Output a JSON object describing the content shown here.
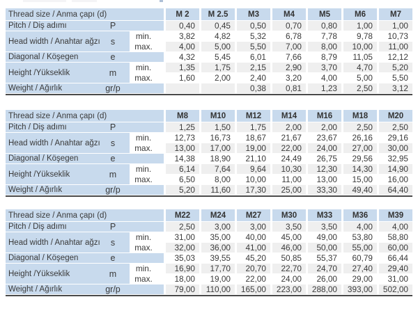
{
  "labels": {
    "thread_size": "Thread size / Anma çapı (d)",
    "pitch": "Pitch / Diş adımı",
    "head_width": "Head width / Anahtar ağzı",
    "diagonal": "Diagonal / Köşegen",
    "height": "Height /Yükseklik",
    "weight": "Weight / Ağırlık",
    "min": "min.",
    "max": "max."
  },
  "symbols": {
    "pitch": "P",
    "head_width": "s",
    "diagonal": "e",
    "height": "m",
    "weight": "gr/p"
  },
  "colors": {
    "header_blue": "#c8daed",
    "row_gray": "#efefef",
    "row_white": "#ffffff",
    "divider_dark": "#4a4a4a",
    "text": "#3a3a3a"
  },
  "tables": [
    {
      "columns": [
        "M 2",
        "M 2.5",
        "M3",
        "M4",
        "M5",
        "M6",
        "M7"
      ],
      "pitch": [
        "0,40",
        "0,45",
        "0,50",
        "0,70",
        "0,80",
        "1,00",
        "1,00"
      ],
      "head_width_min": [
        "3,82",
        "4,82",
        "5,32",
        "6,78",
        "7,78",
        "9,78",
        "10,73"
      ],
      "head_width_max": [
        "4,00",
        "5,00",
        "5,50",
        "7,00",
        "8,00",
        "10,00",
        "11,00"
      ],
      "diagonal": [
        "4,32",
        "5,45",
        "6,01",
        "7,66",
        "8,79",
        "11,05",
        "12,12"
      ],
      "height_min": [
        "1,35",
        "1,75",
        "2,15",
        "2,90",
        "3,70",
        "4,70",
        "5,20"
      ],
      "height_max": [
        "1,60",
        "2,00",
        "2,40",
        "3,20",
        "4,00",
        "5,00",
        "5,50"
      ],
      "weight": [
        "",
        "",
        "0,38",
        "0,81",
        "1,23",
        "2,50",
        "3,12"
      ]
    },
    {
      "columns": [
        "M8",
        "M10",
        "M12",
        "M14",
        "M16",
        "M18",
        "M20"
      ],
      "pitch": [
        "1,25",
        "1,50",
        "1,75",
        "2,00",
        "2,00",
        "2,50",
        "2,50"
      ],
      "head_width_min": [
        "12,73",
        "16,73",
        "18,67",
        "21,67",
        "23,67",
        "26,16",
        "29,16"
      ],
      "head_width_max": [
        "13,00",
        "17,00",
        "19,00",
        "22,00",
        "24,00",
        "27,00",
        "30,00"
      ],
      "diagonal": [
        "14,38",
        "18,90",
        "21,10",
        "24,49",
        "26,75",
        "29,56",
        "32,95"
      ],
      "height_min": [
        "6,14",
        "7,64",
        "9,64",
        "10,30",
        "12,30",
        "14,30",
        "14,90"
      ],
      "height_max": [
        "6,50",
        "8,00",
        "10,00",
        "11,00",
        "13,00",
        "15,00",
        "16,00"
      ],
      "weight": [
        "5,20",
        "11,60",
        "17,30",
        "25,00",
        "33,30",
        "49,40",
        "64,40"
      ]
    },
    {
      "columns": [
        "M22",
        "M24",
        "M27",
        "M30",
        "M33",
        "M36",
        "M39"
      ],
      "pitch": [
        "2,50",
        "3,00",
        "3,00",
        "3,50",
        "3,50",
        "4,00",
        "4,00"
      ],
      "head_width_min": [
        "31,00",
        "35,00",
        "40,00",
        "45,00",
        "49,00",
        "53,80",
        "58,80"
      ],
      "head_width_max": [
        "32,00",
        "36,00",
        "41,00",
        "46,00",
        "50,00",
        "55,00",
        "60,00"
      ],
      "diagonal": [
        "35,03",
        "39,55",
        "45,20",
        "50,85",
        "55,37",
        "60,79",
        "66,44"
      ],
      "height_min": [
        "16,90",
        "17,70",
        "20,70",
        "22,70",
        "24,70",
        "27,40",
        "29,40"
      ],
      "height_max": [
        "18,00",
        "19,00",
        "22,00",
        "24,00",
        "26,00",
        "29,00",
        "31,00"
      ],
      "weight": [
        "79,00",
        "110,00",
        "165,00",
        "223,00",
        "288,00",
        "393,00",
        "502,00"
      ]
    }
  ]
}
